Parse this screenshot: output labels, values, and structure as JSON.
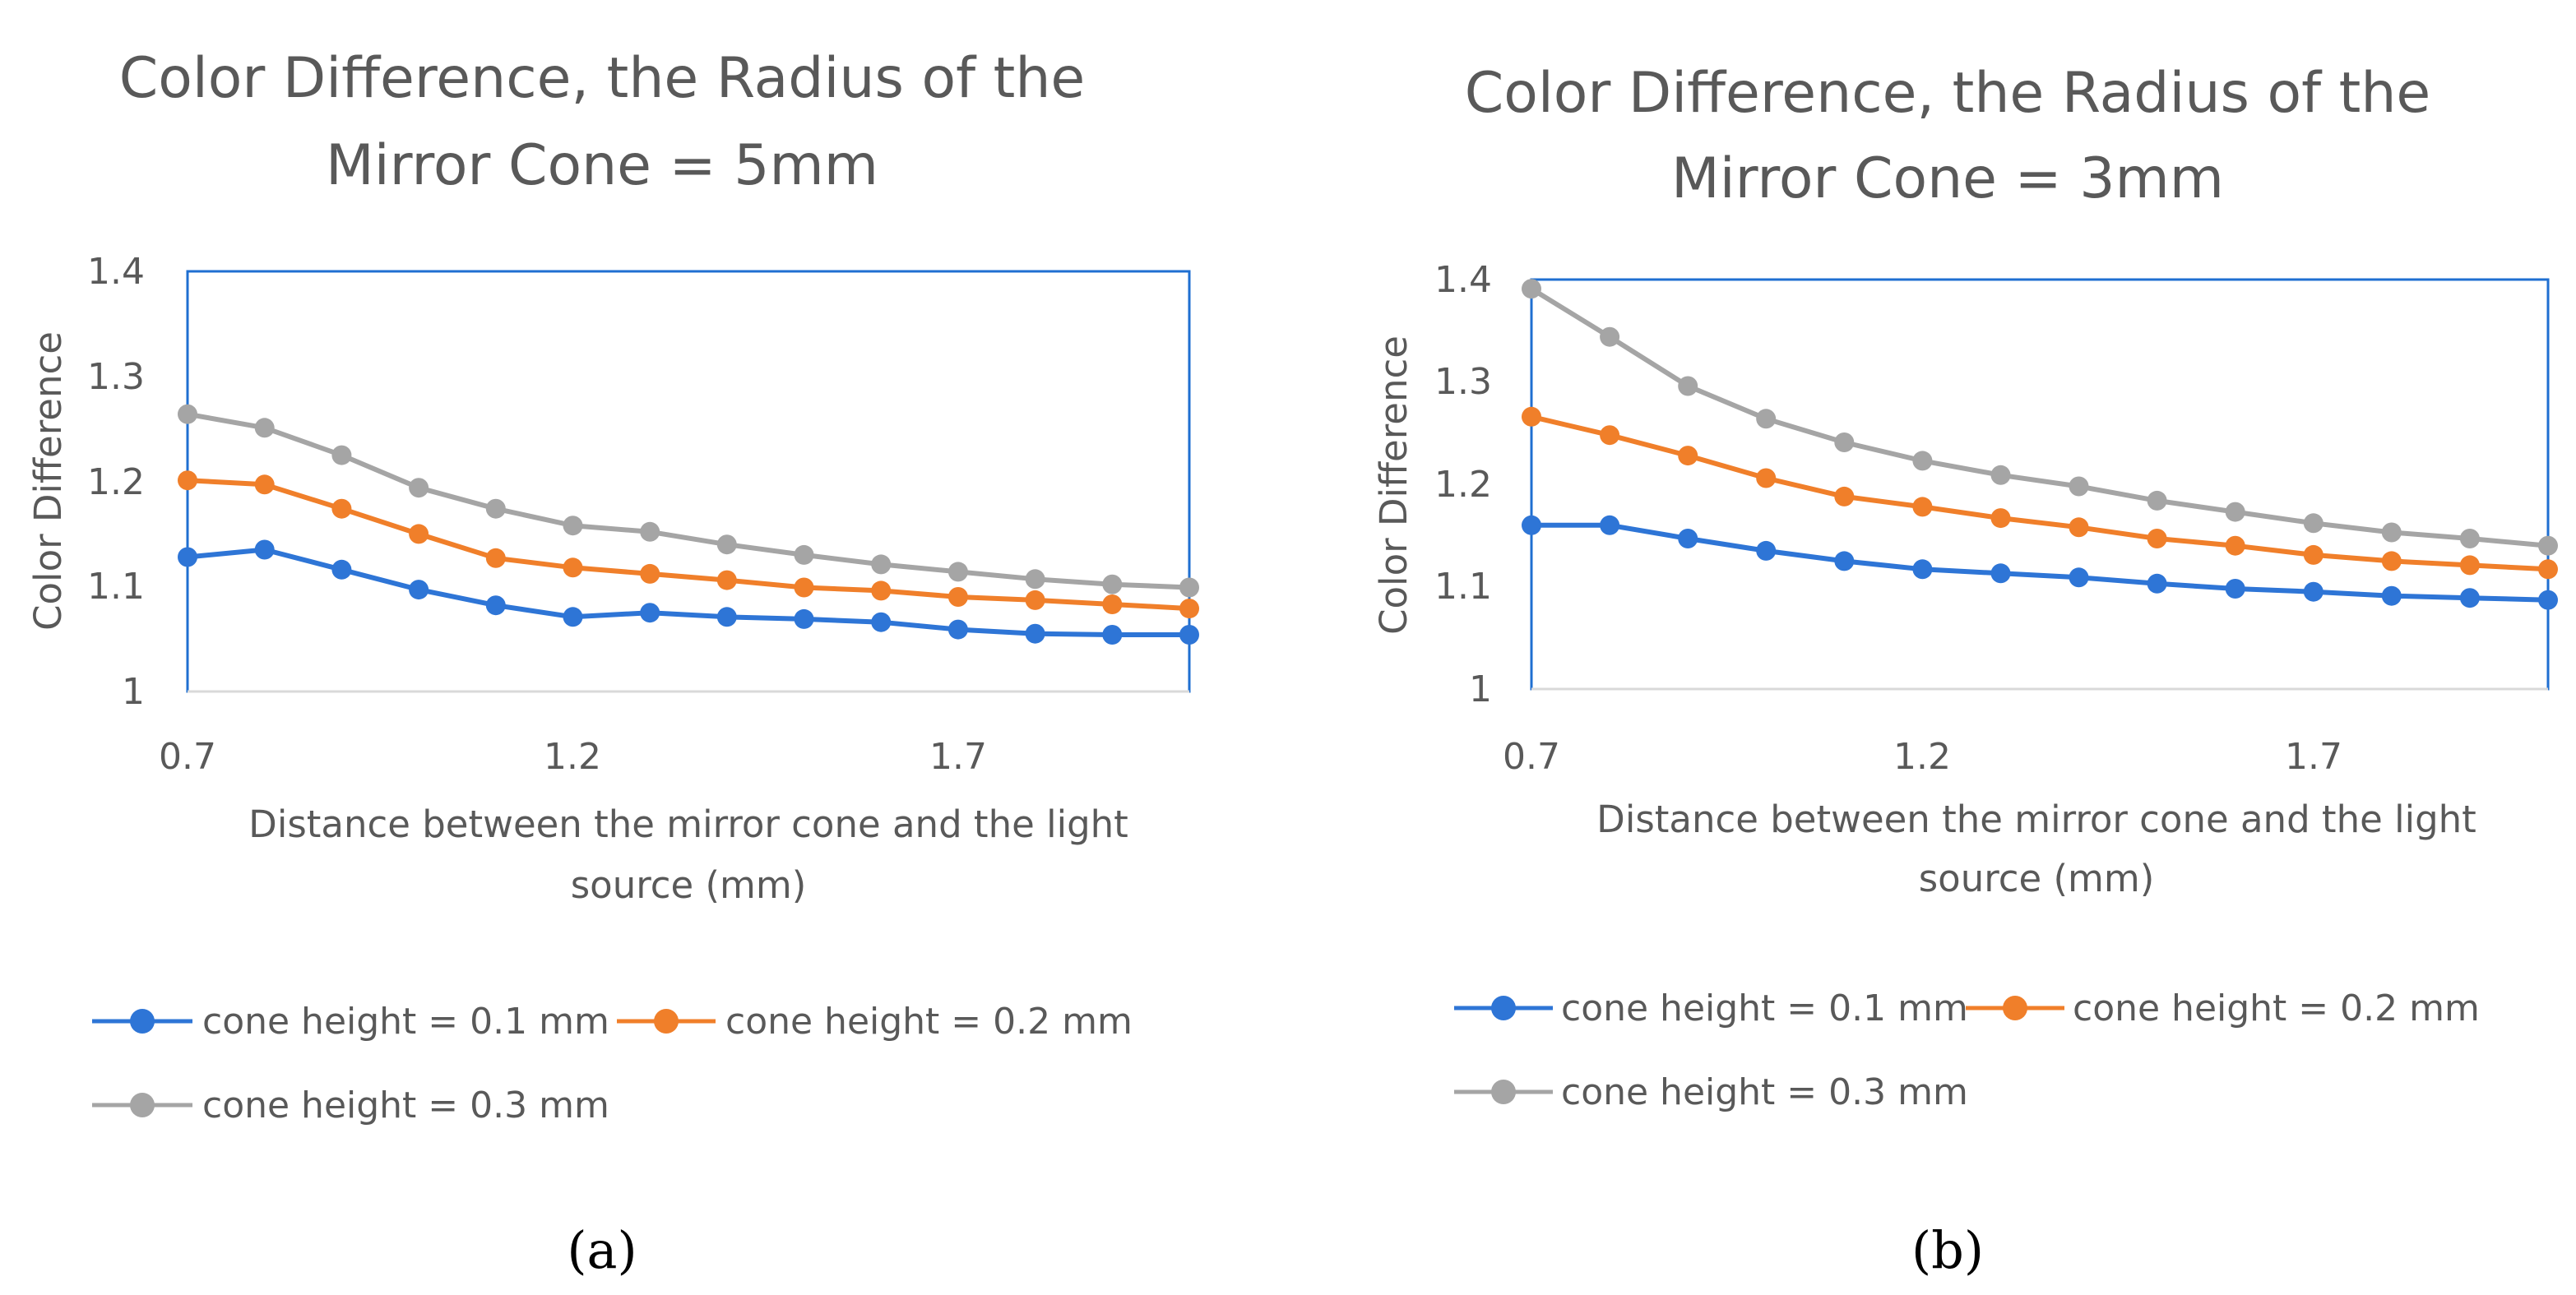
{
  "colors": {
    "series_1": "#2E75D6",
    "series_2": "#F07F2A",
    "series_3": "#A5A5A5",
    "axis": "#D9D9D9",
    "plot_border": "#1F6FD1",
    "text": "#595959"
  },
  "chart_data": [
    {
      "panel": "a",
      "caption": "(a)",
      "type": "line",
      "title_lines": [
        "Color Difference, the Radius of the",
        "Mirror Cone = 5mm"
      ],
      "xlabel_lines": [
        "Distance between  the mirror cone and the  light",
        "source (mm)"
      ],
      "ylabel": "Color Difference",
      "x": [
        0.7,
        0.8,
        0.9,
        1.0,
        1.1,
        1.2,
        1.3,
        1.4,
        1.5,
        1.6,
        1.7,
        1.8,
        1.9,
        2.0
      ],
      "xlim": [
        0.7,
        2.0
      ],
      "ylim": [
        1,
        1.4
      ],
      "xticks": [
        "0.7",
        "1.2",
        "1.7"
      ],
      "yticks": [
        "1",
        "1.1",
        "1.2",
        "1.3",
        "1.4"
      ],
      "grid": false,
      "legend_position": "bottom",
      "series": [
        {
          "name": "cone height = 0.1 mm",
          "values": [
            1.128,
            1.135,
            1.116,
            1.097,
            1.082,
            1.071,
            1.075,
            1.071,
            1.069,
            1.066,
            1.059,
            1.055,
            1.054,
            1.054
          ]
        },
        {
          "name": "cone height = 0.2 mm",
          "values": [
            1.201,
            1.197,
            1.174,
            1.15,
            1.127,
            1.118,
            1.112,
            1.106,
            1.099,
            1.096,
            1.09,
            1.087,
            1.083,
            1.079
          ]
        },
        {
          "name": "cone height = 0.3 mm",
          "values": [
            1.264,
            1.251,
            1.225,
            1.194,
            1.174,
            1.158,
            1.152,
            1.14,
            1.13,
            1.121,
            1.114,
            1.107,
            1.102,
            1.099
          ]
        }
      ]
    },
    {
      "panel": "b",
      "caption": "(b)",
      "type": "line",
      "title_lines": [
        "Color Difference, the Radius of the",
        "Mirror Cone = 3mm"
      ],
      "xlabel_lines": [
        "Distance between  the mirror cone and the  light",
        "source (mm)"
      ],
      "ylabel": "Color Difference",
      "x": [
        0.7,
        0.8,
        0.9,
        1.0,
        1.1,
        1.2,
        1.3,
        1.4,
        1.5,
        1.6,
        1.7,
        1.8,
        1.9,
        2.0
      ],
      "xlim": [
        0.7,
        2.0
      ],
      "ylim": [
        1,
        1.4
      ],
      "xticks": [
        "0.7",
        "1.2",
        "1.7"
      ],
      "yticks": [
        "1",
        "1.1",
        "1.2",
        "1.3",
        "1.4"
      ],
      "grid": false,
      "legend_position": "bottom",
      "series": [
        {
          "name": "cone height = 0.1 mm",
          "values": [
            1.16,
            1.16,
            1.147,
            1.135,
            1.125,
            1.117,
            1.113,
            1.109,
            1.103,
            1.098,
            1.095,
            1.091,
            1.089,
            1.087
          ]
        },
        {
          "name": "cone height = 0.2 mm",
          "values": [
            1.266,
            1.248,
            1.228,
            1.206,
            1.188,
            1.178,
            1.167,
            1.158,
            1.147,
            1.14,
            1.131,
            1.125,
            1.121,
            1.117
          ]
        },
        {
          "name": "cone height = 0.3 mm",
          "values": [
            1.391,
            1.344,
            1.296,
            1.264,
            1.241,
            1.223,
            1.209,
            1.198,
            1.184,
            1.173,
            1.162,
            1.153,
            1.147,
            1.14
          ]
        }
      ]
    }
  ]
}
